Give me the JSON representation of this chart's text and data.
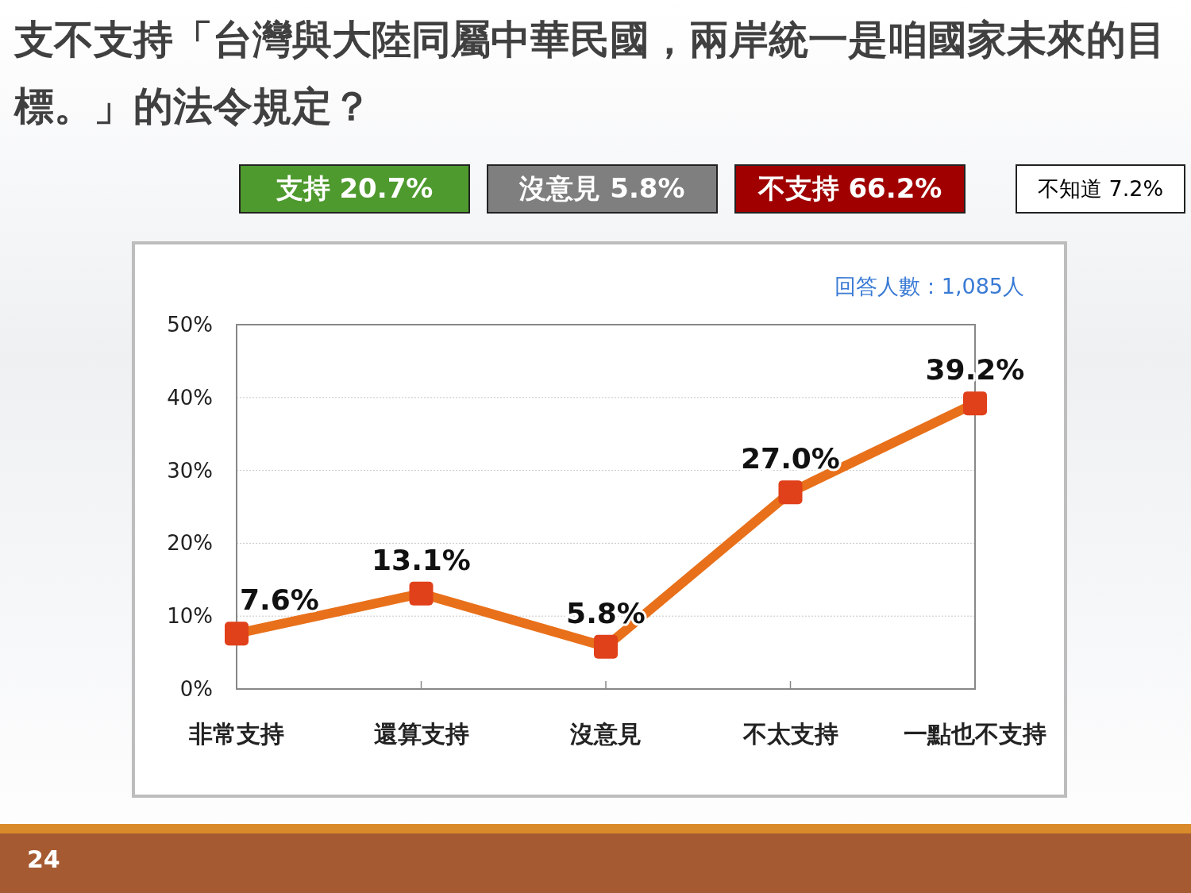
{
  "chart_data": {
    "type": "line",
    "title": "支不支持「台灣與大陸同屬中華民國，兩岸統一是咱國家未來的目標。」的法令規定？",
    "categories": [
      "非常支持",
      "還算支持",
      "沒意見",
      "不太支持",
      "一點也不支持"
    ],
    "series": [
      {
        "color": "#e8701a",
        "values": [
          7.6,
          13.1,
          5.8,
          27.0,
          39.2
        ],
        "value_labels": [
          "7.6%",
          "13.1%",
          "5.8%",
          "27.0%",
          "39.2%"
        ]
      }
    ],
    "ylim": [
      0,
      50
    ],
    "yticks": [
      {
        "value": 0,
        "label": "0%"
      },
      {
        "value": 10,
        "label": "10%"
      },
      {
        "value": 20,
        "label": "20%"
      },
      {
        "value": 30,
        "label": "30%"
      },
      {
        "value": 40,
        "label": "40%"
      },
      {
        "value": 50,
        "label": "50%"
      }
    ],
    "grid": "y",
    "marker": "square",
    "annotations": [
      "支持 20.7%",
      "沒意見 5.8%",
      "不支持 66.2%",
      "不知道 7.2%",
      "回答人數：1,085人",
      "24"
    ]
  }
}
